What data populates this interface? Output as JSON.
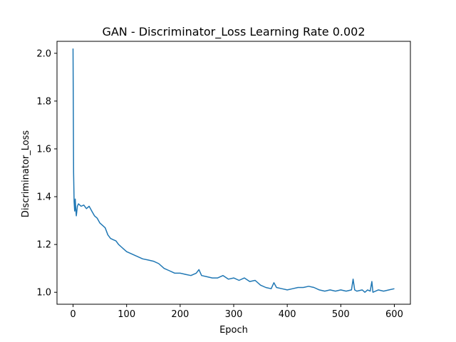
{
  "chart_data": {
    "type": "line",
    "title": "GAN - Discriminator_Loss Learning Rate 0.002",
    "xlabel": "Epoch",
    "ylabel": "Discriminator_Loss",
    "xlim": [
      -30,
      630
    ],
    "ylim": [
      0.95,
      2.05
    ],
    "xticks": [
      0,
      100,
      200,
      300,
      400,
      500,
      600
    ],
    "yticks": [
      1.0,
      1.2,
      1.4,
      1.6,
      1.8,
      2.0
    ],
    "ytick_labels": [
      "1.0",
      "1.2",
      "1.4",
      "1.6",
      "1.8",
      "2.0"
    ],
    "grid": false,
    "legend": "none",
    "color": "#1f77b4",
    "series": [
      {
        "x": [
          0,
          1,
          2,
          3,
          4,
          5,
          6,
          8,
          10,
          15,
          20,
          25,
          30,
          35,
          40,
          45,
          50,
          55,
          60,
          65,
          70,
          75,
          80,
          85,
          90,
          95,
          100,
          110,
          120,
          130,
          140,
          150,
          160,
          170,
          180,
          190,
          200,
          210,
          220,
          230,
          235,
          240,
          250,
          260,
          270,
          280,
          290,
          300,
          310,
          320,
          330,
          340,
          350,
          360,
          370,
          375,
          380,
          390,
          400,
          410,
          420,
          430,
          440,
          450,
          460,
          470,
          480,
          490,
          500,
          510,
          520,
          523,
          526,
          530,
          540,
          545,
          550,
          555,
          558,
          560,
          570,
          580,
          590,
          600
        ],
        "y": [
          2.02,
          1.5,
          1.38,
          1.34,
          1.39,
          1.35,
          1.32,
          1.36,
          1.37,
          1.36,
          1.365,
          1.35,
          1.36,
          1.34,
          1.32,
          1.31,
          1.29,
          1.28,
          1.27,
          1.24,
          1.225,
          1.22,
          1.215,
          1.2,
          1.19,
          1.18,
          1.17,
          1.16,
          1.15,
          1.14,
          1.135,
          1.13,
          1.12,
          1.1,
          1.09,
          1.08,
          1.08,
          1.075,
          1.07,
          1.08,
          1.095,
          1.07,
          1.065,
          1.06,
          1.06,
          1.07,
          1.055,
          1.06,
          1.05,
          1.06,
          1.045,
          1.05,
          1.03,
          1.02,
          1.015,
          1.04,
          1.02,
          1.015,
          1.01,
          1.015,
          1.02,
          1.02,
          1.025,
          1.02,
          1.01,
          1.005,
          1.01,
          1.005,
          1.01,
          1.005,
          1.01,
          1.055,
          1.01,
          1.005,
          1.01,
          1.0,
          1.01,
          1.005,
          1.045,
          1.0,
          1.01,
          1.005,
          1.01,
          1.015
        ]
      }
    ]
  }
}
